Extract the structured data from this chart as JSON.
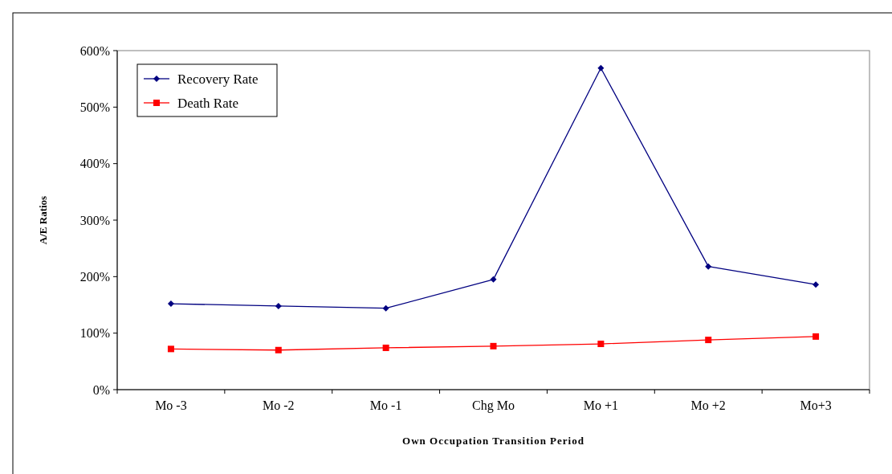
{
  "chart_data": {
    "type": "line",
    "xlabel": "Own Occupation Transition Period",
    "ylabel": "A/E Ratios",
    "categories": [
      "Mo -3",
      "Mo -2",
      "Mo -1",
      "Chg Mo",
      "Mo +1",
      "Mo +2",
      "Mo+3"
    ],
    "series": [
      {
        "name": "Recovery Rate",
        "color": "#000080",
        "marker": "diamond",
        "values": [
          152,
          148,
          144,
          195,
          569,
          218,
          186
        ]
      },
      {
        "name": "Death Rate",
        "color": "#ff0000",
        "marker": "square",
        "values": [
          72,
          70,
          74,
          77,
          81,
          88,
          94
        ]
      }
    ],
    "ylim": [
      0,
      600
    ],
    "yticks": [
      {
        "value": 0,
        "label": "0%"
      },
      {
        "value": 100,
        "label": "100%"
      },
      {
        "value": 200,
        "label": "200%"
      },
      {
        "value": 300,
        "label": "300%"
      },
      {
        "value": 400,
        "label": "400%"
      },
      {
        "value": 500,
        "label": "500%"
      },
      {
        "value": 600,
        "label": "600%"
      }
    ],
    "grid": false,
    "legend": "top left"
  }
}
